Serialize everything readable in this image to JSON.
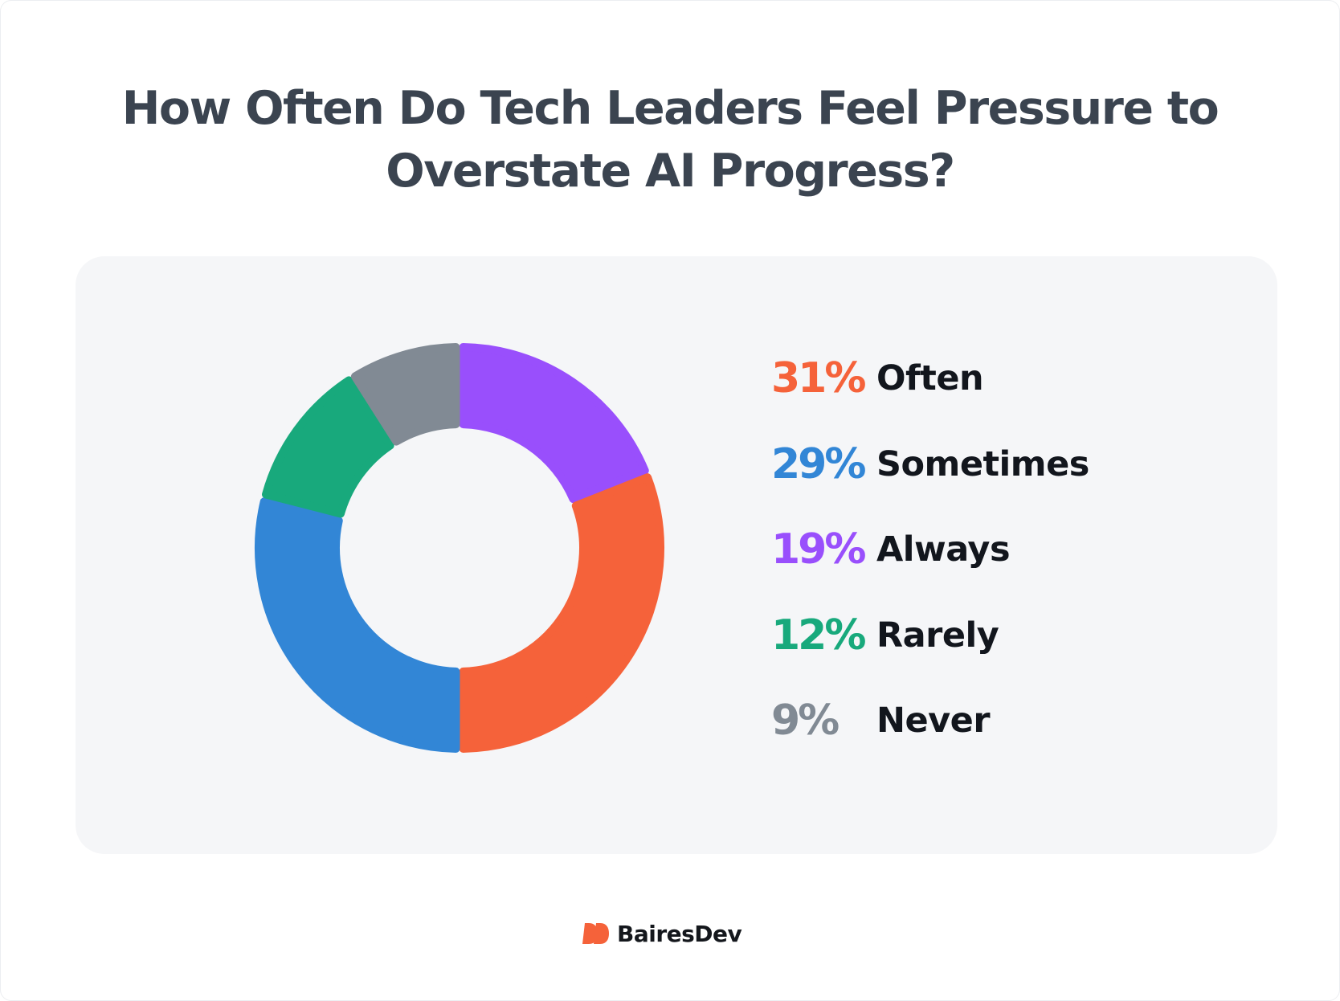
{
  "title_line1": "How Often Do Tech Leaders Feel Pressure to",
  "title_line2": "Overstate AI Progress?",
  "brand": {
    "name": "BairesDev",
    "color": "#f5623a"
  },
  "colors": {
    "title": "#3b4450",
    "panel_background": "#f5f6f8",
    "label_text": "#12161d"
  },
  "chart_data": {
    "type": "pie",
    "variant": "donut",
    "title": "How Often Do Tech Leaders Feel Pressure to Overstate AI Progress?",
    "unit": "%",
    "legend_position": "right",
    "slices": [
      {
        "label": "Often",
        "value": 31,
        "pct_text": "31%",
        "color": "#f5623a"
      },
      {
        "label": "Sometimes",
        "value": 29,
        "pct_text": "29%",
        "color": "#3286d6"
      },
      {
        "label": "Always",
        "value": 19,
        "pct_text": "19%",
        "color": "#994ffc"
      },
      {
        "label": "Rarely",
        "value": 12,
        "pct_text": "12%",
        "color": "#18a97c"
      },
      {
        "label": "Never",
        "value": 9,
        "pct_text": "9%",
        "color": "#818a94"
      }
    ],
    "draw_order": [
      "Always",
      "Often",
      "Sometimes",
      "Rarely",
      "Never"
    ]
  }
}
